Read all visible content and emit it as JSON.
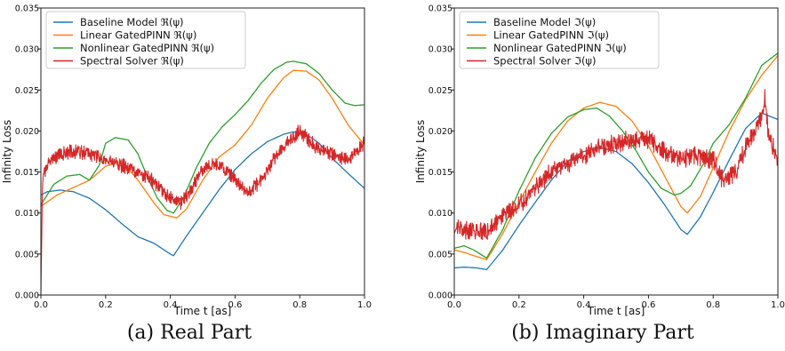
{
  "captions": [
    "(a) Real Part",
    "(b) Imaginary Part"
  ],
  "colors": {
    "Baseline": "#1f77b4",
    "Linear": "#ff7f0e",
    "Nonlinear": "#2ca02c",
    "Spectral": "#d62728"
  },
  "chart_data": [
    {
      "type": "line",
      "xlabel": "Time t [as]",
      "ylabel": "Infinity Loss",
      "xlim": [
        0.0,
        1.0
      ],
      "ylim": [
        0.0,
        0.035
      ],
      "xticks": [
        "0.0",
        "0.2",
        "0.4",
        "0.6",
        "0.8",
        "1.0"
      ],
      "yticks": [
        "0.000",
        "0.005",
        "0.010",
        "0.015",
        "0.020",
        "0.025",
        "0.030",
        "0.035"
      ],
      "legend": "top-left",
      "grid": false,
      "series": [
        {
          "name": "Baseline Model ℜ(ψ)",
          "color": "Baseline",
          "noisy": false,
          "x": [
            0,
            0.02,
            0.06,
            0.1,
            0.15,
            0.2,
            0.25,
            0.3,
            0.35,
            0.4,
            0.41,
            0.45,
            0.5,
            0.55,
            0.6,
            0.65,
            0.7,
            0.75,
            0.78,
            0.82,
            0.86,
            0.9,
            0.95,
            1.0
          ],
          "y": [
            0.0122,
            0.0126,
            0.0128,
            0.0126,
            0.0118,
            0.0104,
            0.0087,
            0.0071,
            0.0063,
            0.005,
            0.0048,
            0.0072,
            0.01,
            0.0128,
            0.0153,
            0.0172,
            0.0187,
            0.0196,
            0.0199,
            0.0196,
            0.0185,
            0.0167,
            0.0148,
            0.013
          ]
        },
        {
          "name": "Linear GatedPINN ℜ(ψ)",
          "color": "Linear",
          "noisy": false,
          "x": [
            0,
            0.05,
            0.1,
            0.15,
            0.2,
            0.25,
            0.3,
            0.35,
            0.38,
            0.42,
            0.45,
            0.5,
            0.55,
            0.6,
            0.65,
            0.7,
            0.75,
            0.78,
            0.82,
            0.86,
            0.9,
            0.95,
            1.0
          ],
          "y": [
            0.0108,
            0.0122,
            0.0131,
            0.014,
            0.0157,
            0.0163,
            0.014,
            0.0112,
            0.0098,
            0.0094,
            0.0105,
            0.014,
            0.0168,
            0.0183,
            0.0207,
            0.024,
            0.0265,
            0.0274,
            0.0273,
            0.0262,
            0.024,
            0.0207,
            0.0183
          ]
        },
        {
          "name": "Nonlinear GatedPINN ℜ(ψ)",
          "color": "Nonlinear",
          "noisy": false,
          "x": [
            0,
            0.04,
            0.08,
            0.12,
            0.15,
            0.18,
            0.2,
            0.23,
            0.27,
            0.3,
            0.33,
            0.36,
            0.39,
            0.41,
            0.44,
            0.48,
            0.52,
            0.56,
            0.6,
            0.64,
            0.68,
            0.72,
            0.76,
            0.78,
            0.82,
            0.86,
            0.9,
            0.94,
            0.97,
            1.0
          ],
          "y": [
            0.011,
            0.0135,
            0.0145,
            0.0147,
            0.014,
            0.0158,
            0.0185,
            0.0192,
            0.0189,
            0.0172,
            0.0143,
            0.0118,
            0.0103,
            0.01,
            0.0118,
            0.0155,
            0.0185,
            0.0205,
            0.022,
            0.0237,
            0.0258,
            0.0275,
            0.0284,
            0.0285,
            0.0282,
            0.027,
            0.025,
            0.0234,
            0.0231,
            0.0232
          ]
        },
        {
          "name": "Spectral Solver  ℜ(ψ)",
          "color": "Spectral",
          "noisy": true,
          "amp": 0.0007,
          "x": [
            0,
            0.005,
            0.01,
            0.03,
            0.06,
            0.1,
            0.15,
            0.2,
            0.25,
            0.3,
            0.35,
            0.4,
            0.43,
            0.46,
            0.5,
            0.55,
            0.6,
            0.64,
            0.68,
            0.72,
            0.76,
            0.8,
            0.85,
            0.9,
            0.95,
            1.0
          ],
          "y": [
            0.0,
            0.0135,
            0.015,
            0.0165,
            0.0172,
            0.0175,
            0.0172,
            0.0165,
            0.0158,
            0.015,
            0.0138,
            0.0118,
            0.0112,
            0.0125,
            0.0155,
            0.016,
            0.014,
            0.0125,
            0.014,
            0.0165,
            0.0185,
            0.02,
            0.018,
            0.0172,
            0.0165,
            0.0185
          ]
        }
      ]
    },
    {
      "type": "line",
      "xlabel": "Time t [as]",
      "ylabel": "Infinity Loss",
      "xlim": [
        0.0,
        1.0
      ],
      "ylim": [
        0.0,
        0.035
      ],
      "xticks": [
        "0.0",
        "0.2",
        "0.4",
        "0.6",
        "0.8",
        "1.0"
      ],
      "yticks": [
        "0.000",
        "0.005",
        "0.010",
        "0.015",
        "0.020",
        "0.025",
        "0.030",
        "0.035"
      ],
      "legend": "top-left",
      "grid": false,
      "series": [
        {
          "name": "Baseline Model ℑ(ψ)",
          "color": "Baseline",
          "noisy": false,
          "x": [
            0,
            0.03,
            0.07,
            0.1,
            0.15,
            0.2,
            0.25,
            0.3,
            0.35,
            0.4,
            0.45,
            0.5,
            0.55,
            0.6,
            0.65,
            0.7,
            0.72,
            0.76,
            0.8,
            0.85,
            0.9,
            0.95,
            1.0
          ],
          "y": [
            0.0033,
            0.0034,
            0.0033,
            0.0031,
            0.0055,
            0.0085,
            0.0113,
            0.014,
            0.0163,
            0.0175,
            0.018,
            0.0175,
            0.016,
            0.0137,
            0.011,
            0.008,
            0.0074,
            0.0095,
            0.0125,
            0.0165,
            0.0203,
            0.0222,
            0.0214
          ]
        },
        {
          "name": "Linear GatedPINN ℑ(ψ)",
          "color": "Linear",
          "noisy": false,
          "x": [
            0,
            0.03,
            0.06,
            0.1,
            0.15,
            0.2,
            0.25,
            0.3,
            0.35,
            0.4,
            0.45,
            0.5,
            0.55,
            0.6,
            0.65,
            0.7,
            0.72,
            0.76,
            0.8,
            0.85,
            0.9,
            0.95,
            1.0
          ],
          "y": [
            0.0055,
            0.0052,
            0.0048,
            0.0043,
            0.0075,
            0.0113,
            0.015,
            0.0185,
            0.0212,
            0.0228,
            0.0235,
            0.023,
            0.0212,
            0.0182,
            0.0145,
            0.0108,
            0.01,
            0.012,
            0.0155,
            0.02,
            0.0238,
            0.0268,
            0.0292
          ]
        },
        {
          "name": "Nonlinear GatedPINN ℑ(ψ)",
          "color": "Nonlinear",
          "noisy": false,
          "x": [
            0,
            0.03,
            0.06,
            0.1,
            0.15,
            0.2,
            0.25,
            0.3,
            0.35,
            0.4,
            0.44,
            0.48,
            0.52,
            0.56,
            0.6,
            0.64,
            0.68,
            0.7,
            0.73,
            0.77,
            0.8,
            0.85,
            0.9,
            0.95,
            1.0
          ],
          "y": [
            0.0057,
            0.006,
            0.0055,
            0.0045,
            0.008,
            0.0127,
            0.0167,
            0.0197,
            0.0217,
            0.0226,
            0.0228,
            0.0218,
            0.02,
            0.0177,
            0.015,
            0.013,
            0.0122,
            0.0124,
            0.0133,
            0.016,
            0.0185,
            0.0208,
            0.024,
            0.028,
            0.0295
          ]
        },
        {
          "name": "Spectral Solver  ℑ(ψ)",
          "color": "Spectral",
          "noisy": true,
          "amp": 0.0009,
          "x": [
            0,
            0.005,
            0.01,
            0.05,
            0.1,
            0.15,
            0.2,
            0.25,
            0.3,
            0.35,
            0.4,
            0.45,
            0.5,
            0.55,
            0.6,
            0.65,
            0.7,
            0.75,
            0.8,
            0.83,
            0.87,
            0.9,
            0.93,
            0.95,
            0.96,
            0.97,
            1.0
          ],
          "y": [
            0.0075,
            0.008,
            0.008,
            0.0078,
            0.0078,
            0.0095,
            0.011,
            0.013,
            0.015,
            0.016,
            0.017,
            0.018,
            0.0185,
            0.019,
            0.019,
            0.0175,
            0.0165,
            0.017,
            0.0165,
            0.014,
            0.015,
            0.018,
            0.02,
            0.022,
            0.024,
            0.02,
            0.016
          ]
        }
      ]
    }
  ]
}
